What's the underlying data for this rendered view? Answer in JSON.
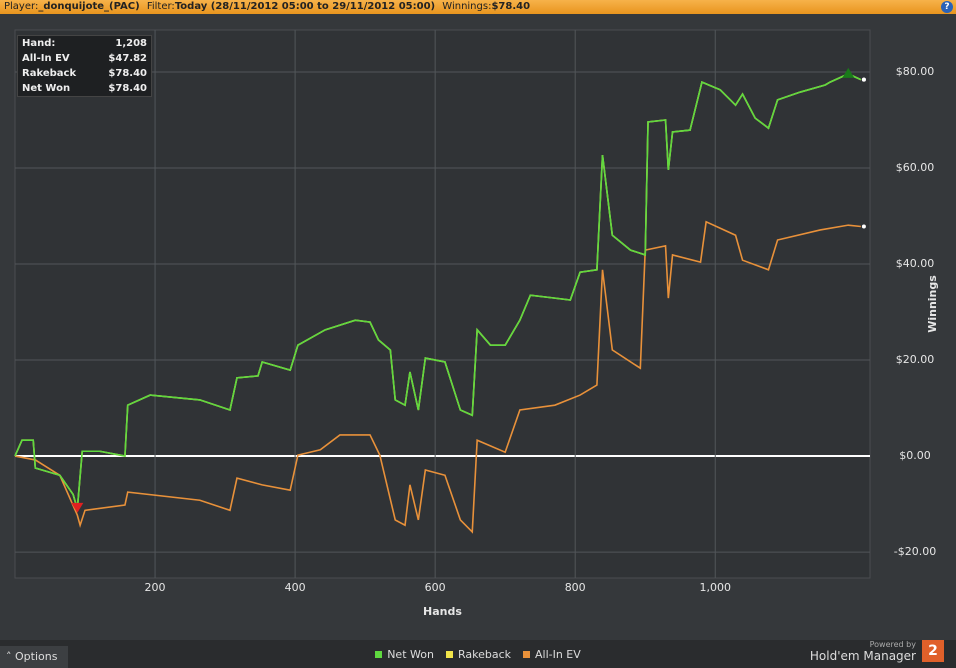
{
  "header": {
    "player_label": "Player:",
    "player": "_donquijote_(PAC)",
    "filter_label": "Filter:",
    "filter": "Today (28/11/2012 05:00 to 29/11/2012 05:00)",
    "winnings_label": "Winnings:",
    "winnings": "$78.40"
  },
  "stats": [
    [
      "Hand:",
      "1,208"
    ],
    [
      "All-In EV",
      "$47.82"
    ],
    [
      "Rakeback",
      "$78.40"
    ],
    [
      "Net Won",
      "$78.40"
    ]
  ],
  "chart_data": {
    "type": "line",
    "x_label": "Hands",
    "y_label": "Winnings",
    "xlim": [
      0,
      1221
    ],
    "xticks": [
      200,
      400,
      600,
      800,
      {
        "value": 1000,
        "label": "1,000"
      }
    ],
    "ylim": [
      -25.4,
      88.75
    ],
    "yticks": [
      {
        "value": -20,
        "label": "-$20.00"
      },
      {
        "value": 0,
        "label": "$0.00"
      },
      {
        "value": 20,
        "label": "$20.00"
      },
      {
        "value": 40,
        "label": "$40.00"
      },
      {
        "value": 60,
        "label": "$60.00"
      },
      {
        "value": 80,
        "label": "$80.00"
      }
    ],
    "grid": true,
    "series": [
      {
        "name": "Net Won",
        "color": "#5fd93f",
        "x": [
          0,
          10,
          26,
          29,
          64,
          83,
          89,
          96,
          121,
          157,
          161,
          193,
          264,
          307,
          317,
          347,
          353,
          393,
          404,
          443,
          486,
          507,
          519,
          536,
          543,
          557,
          564,
          576,
          586,
          614,
          636,
          653,
          660,
          679,
          700,
          721,
          736,
          771,
          793,
          807,
          831,
          839,
          853,
          879,
          900,
          904,
          929,
          933,
          939,
          964,
          981,
          1007,
          1029,
          1039,
          1057,
          1076,
          1089,
          1121,
          1157,
          1164,
          1190,
          1208
        ],
        "values": [
          0,
          3.3,
          3.3,
          -2.5,
          -4,
          -8,
          -11,
          1,
          1,
          0,
          10.6,
          12.7,
          11.7,
          9.6,
          16.3,
          16.7,
          19.6,
          17.9,
          23.1,
          26.3,
          28.3,
          27.9,
          24.2,
          22.1,
          11.7,
          10.6,
          17.5,
          9.6,
          20.4,
          19.6,
          9.6,
          8.5,
          26.3,
          23.1,
          23.1,
          28.3,
          33.5,
          32.9,
          32.5,
          38.3,
          38.8,
          62.7,
          46,
          42.9,
          41.9,
          69.6,
          70,
          59.6,
          67.5,
          67.9,
          77.9,
          76.3,
          73.1,
          75.4,
          70.4,
          68.3,
          74.2,
          75.8,
          77.3,
          77.9,
          79.6,
          78.4
        ]
      },
      {
        "name": "Rakeback",
        "color": "#f2e54a",
        "x": [
          0,
          10,
          26,
          29,
          64,
          83,
          89,
          96,
          121,
          157,
          161,
          193,
          264,
          307,
          317,
          347,
          353,
          393,
          404,
          443,
          486,
          507,
          519,
          536,
          543,
          557,
          564,
          576,
          586,
          614,
          636,
          653,
          660,
          679,
          700,
          721,
          736,
          771,
          793,
          807,
          831,
          839,
          853,
          879,
          900,
          904,
          929,
          933,
          939,
          964,
          981,
          1007,
          1029,
          1039,
          1057,
          1076,
          1089,
          1121,
          1157,
          1164,
          1190,
          1208
        ],
        "values": [
          0,
          3.3,
          3.3,
          -2.5,
          -4,
          -8,
          -11,
          1,
          1,
          0,
          10.6,
          12.7,
          11.7,
          9.6,
          16.3,
          16.7,
          19.6,
          17.9,
          23.1,
          26.3,
          28.3,
          27.9,
          24.2,
          22.1,
          11.7,
          10.6,
          17.5,
          9.6,
          20.4,
          19.6,
          9.6,
          8.5,
          26.3,
          23.1,
          23.1,
          28.3,
          33.5,
          32.9,
          32.5,
          38.3,
          38.8,
          62.7,
          46,
          42.9,
          41.9,
          69.6,
          70,
          59.6,
          67.5,
          67.9,
          77.9,
          76.3,
          73.1,
          75.4,
          70.4,
          68.3,
          74.2,
          75.8,
          77.3,
          77.9,
          79.6,
          78.4
        ]
      },
      {
        "name": "All-In EV",
        "color": "#e8913a",
        "x": [
          0,
          29,
          64,
          89,
          93,
          100,
          157,
          161,
          264,
          307,
          317,
          353,
          393,
          404,
          436,
          464,
          507,
          521,
          543,
          557,
          564,
          576,
          586,
          614,
          636,
          653,
          660,
          700,
          721,
          771,
          807,
          831,
          839,
          853,
          893,
          900,
          929,
          933,
          939,
          979,
          987,
          1029,
          1039,
          1076,
          1089,
          1150,
          1190,
          1208
        ],
        "values": [
          0,
          -0.8,
          -4,
          -12.3,
          -14.4,
          -11.3,
          -10.2,
          -7.5,
          -9.2,
          -11.3,
          -4.6,
          -6,
          -7.1,
          0.2,
          1.3,
          4.4,
          4.4,
          0.2,
          -13.3,
          -14.4,
          -6,
          -13.3,
          -2.9,
          -4,
          -13.3,
          -15.8,
          3.3,
          0.8,
          9.6,
          10.6,
          12.7,
          14.8,
          38.8,
          22.1,
          18.3,
          42.9,
          43.8,
          32.9,
          41.9,
          40.4,
          48.8,
          46,
          40.8,
          38.8,
          45,
          47.1,
          48.1,
          47.82
        ]
      }
    ]
  },
  "footer": {
    "options": "Options",
    "powered_by": "Powered by",
    "brand": "Hold'em Manager",
    "logo": "2"
  }
}
